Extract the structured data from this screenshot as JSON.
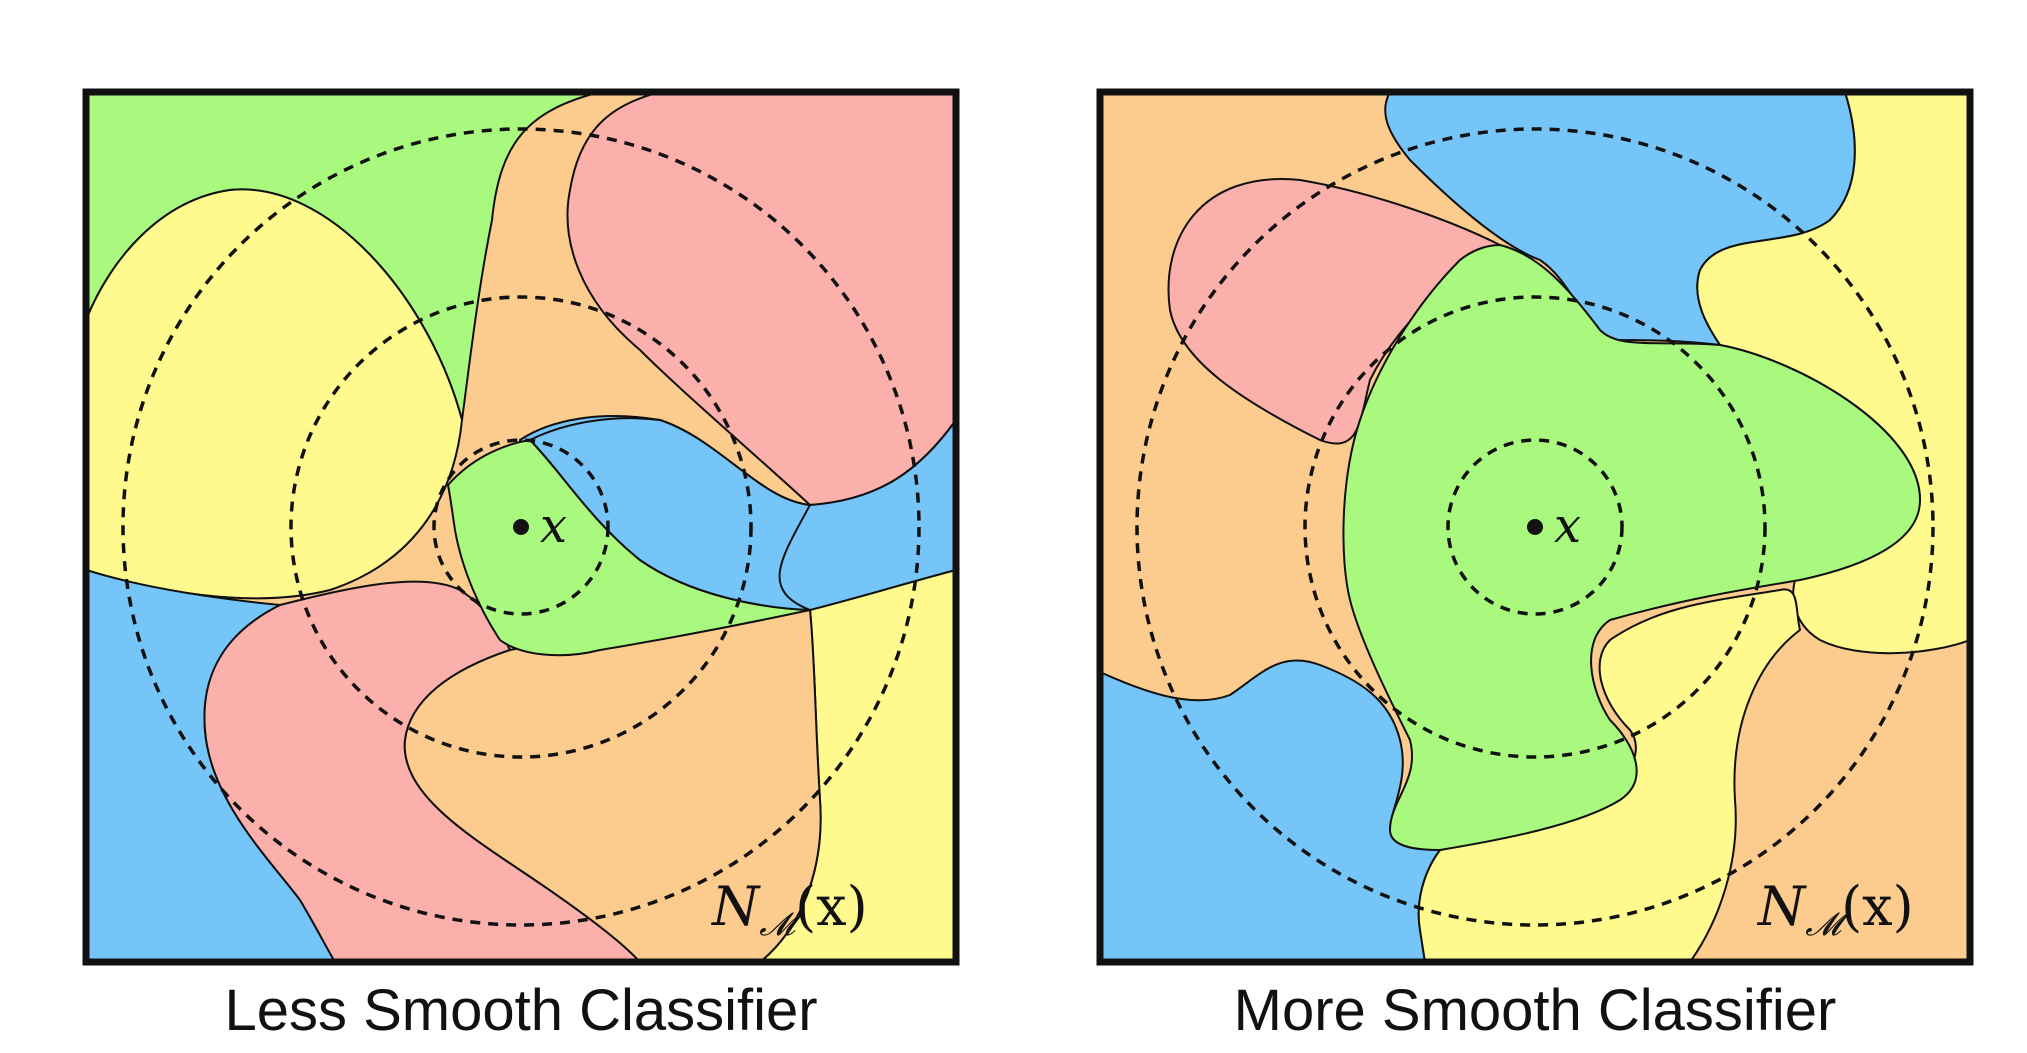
{
  "colors": {
    "green": "#a9f97e",
    "orange": "#fccb8e",
    "red": "#fbb0ab",
    "blue": "#75c5f8",
    "yellow": "#fefa8d",
    "frame": "#111111",
    "text": "#111111"
  },
  "panels": [
    {
      "caption": "Less Smooth Classifier",
      "point_label": "x",
      "neighborhood_label": {
        "base": "N",
        "sub": "𝓜",
        "arg": "(x)"
      }
    },
    {
      "caption": "More Smooth Classifier",
      "point_label": "x",
      "neighborhood_label": {
        "base": "N",
        "sub": "𝓜",
        "arg": "(x)"
      }
    }
  ]
}
